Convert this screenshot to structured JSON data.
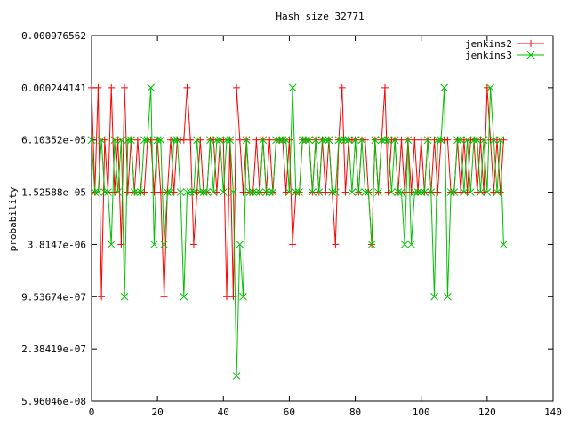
{
  "chart_data": {
    "type": "line",
    "title": "Hash size 32771",
    "xlabel": "",
    "ylabel": "probability",
    "x_scale": "linear",
    "y_scale": "log2",
    "xlim": [
      0,
      140
    ],
    "ylim": [
      5.96046e-08,
      0.000976562
    ],
    "x_ticks": [
      0,
      20,
      40,
      60,
      80,
      100,
      120,
      140
    ],
    "y_ticks": [
      {
        "value": 0.000976562,
        "label": "0.000976562"
      },
      {
        "value": 0.000244141,
        "label": "0.000244141"
      },
      {
        "value": 6.10352e-05,
        "label": "6.10352e-05"
      },
      {
        "value": 1.52588e-05,
        "label": "1.52588e-05"
      },
      {
        "value": 3.8147e-06,
        "label": "3.8147e-06"
      },
      {
        "value": 9.53674e-07,
        "label": "9.53674e-07"
      },
      {
        "value": 2.38419e-07,
        "label": "2.38419e-07"
      },
      {
        "value": 5.96046e-08,
        "label": "5.96046e-08"
      }
    ],
    "grid": false,
    "legend_position": "top-right",
    "x": [
      0,
      1,
      2,
      3,
      4,
      5,
      6,
      7,
      8,
      9,
      10,
      11,
      12,
      13,
      14,
      15,
      16,
      17,
      18,
      19,
      20,
      21,
      22,
      23,
      24,
      25,
      26,
      27,
      28,
      29,
      30,
      31,
      32,
      33,
      34,
      35,
      36,
      37,
      38,
      39,
      40,
      41,
      42,
      43,
      44,
      45,
      46,
      47,
      48,
      49,
      50,
      51,
      52,
      53,
      54,
      55,
      56,
      57,
      58,
      59,
      60,
      61,
      62,
      63,
      64,
      65,
      66,
      67,
      68,
      69,
      70,
      71,
      72,
      73,
      74,
      75,
      76,
      77,
      78,
      79,
      80,
      81,
      82,
      83,
      84,
      85,
      86,
      87,
      88,
      89,
      90,
      91,
      92,
      93,
      94,
      95,
      96,
      97,
      98,
      99,
      100,
      101,
      102,
      103,
      104,
      105,
      106,
      107,
      108,
      109,
      110,
      111,
      112,
      113,
      114,
      115,
      116,
      117,
      118,
      119,
      120,
      121,
      122,
      123,
      124,
      125
    ],
    "series": [
      {
        "name": "jenkins2",
        "color": "#ff0000",
        "marker": "plus",
        "values": [
          0.000244141,
          1.52588e-05,
          0.000244141,
          9.53674e-07,
          6.10352e-05,
          1.52588e-05,
          0.000244141,
          1.52588e-05,
          6.10352e-05,
          3.8147e-06,
          0.000244141,
          1.52588e-05,
          6.10352e-05,
          1.52588e-05,
          6.10352e-05,
          1.52588e-05,
          1.52588e-05,
          6.10352e-05,
          6.10352e-05,
          1.52588e-05,
          6.10352e-05,
          1.52588e-05,
          9.53674e-07,
          1.52588e-05,
          6.10352e-05,
          1.52588e-05,
          6.10352e-05,
          6.10352e-05,
          6.10352e-05,
          0.000244141,
          6.10352e-05,
          3.8147e-06,
          1.52588e-05,
          6.10352e-05,
          1.52588e-05,
          1.52588e-05,
          6.10352e-05,
          6.10352e-05,
          1.52588e-05,
          6.10352e-05,
          6.10352e-05,
          9.53674e-07,
          6.10352e-05,
          9.53674e-07,
          0.000244141,
          6.10352e-05,
          1.52588e-05,
          6.10352e-05,
          1.52588e-05,
          1.52588e-05,
          6.10352e-05,
          1.52588e-05,
          6.10352e-05,
          1.52588e-05,
          6.10352e-05,
          1.52588e-05,
          6.10352e-05,
          6.10352e-05,
          6.10352e-05,
          1.52588e-05,
          6.10352e-05,
          3.8147e-06,
          1.52588e-05,
          1.52588e-05,
          6.10352e-05,
          6.10352e-05,
          6.10352e-05,
          1.52588e-05,
          6.10352e-05,
          1.52588e-05,
          6.10352e-05,
          1.52588e-05,
          6.10352e-05,
          1.52588e-05,
          3.8147e-06,
          6.10352e-05,
          0.000244141,
          1.52588e-05,
          6.10352e-05,
          6.10352e-05,
          6.10352e-05,
          1.52588e-05,
          6.10352e-05,
          6.10352e-05,
          1.52588e-05,
          3.8147e-06,
          6.10352e-05,
          1.52588e-05,
          6.10352e-05,
          0.000244141,
          1.52588e-05,
          6.10352e-05,
          6.10352e-05,
          1.52588e-05,
          6.10352e-05,
          1.52588e-05,
          6.10352e-05,
          1.52588e-05,
          6.10352e-05,
          1.52588e-05,
          6.10352e-05,
          1.52588e-05,
          6.10352e-05,
          1.52588e-05,
          6.10352e-05,
          1.52588e-05,
          6.10352e-05,
          6.10352e-05,
          6.10352e-05,
          1.52588e-05,
          1.52588e-05,
          6.10352e-05,
          1.52588e-05,
          6.10352e-05,
          1.52588e-05,
          6.10352e-05,
          6.10352e-05,
          1.52588e-05,
          6.10352e-05,
          1.52588e-05,
          0.000244141,
          6.10352e-05,
          1.52588e-05,
          6.10352e-05,
          1.52588e-05,
          6.10352e-05
        ]
      },
      {
        "name": "jenkins3",
        "color": "#00c000",
        "marker": "cross",
        "values": [
          6.10352e-05,
          1.52588e-05,
          1.52588e-05,
          6.10352e-05,
          1.52588e-05,
          1.52588e-05,
          3.8147e-06,
          6.10352e-05,
          1.52588e-05,
          6.10352e-05,
          9.53674e-07,
          6.10352e-05,
          6.10352e-05,
          1.52588e-05,
          1.52588e-05,
          1.52588e-05,
          6.10352e-05,
          6.10352e-05,
          0.000244141,
          3.8147e-06,
          6.10352e-05,
          6.10352e-05,
          3.8147e-06,
          1.52588e-05,
          1.52588e-05,
          6.10352e-05,
          6.10352e-05,
          1.52588e-05,
          9.53674e-07,
          1.52588e-05,
          1.52588e-05,
          1.52588e-05,
          6.10352e-05,
          1.52588e-05,
          1.52588e-05,
          1.52588e-05,
          6.10352e-05,
          1.52588e-05,
          6.10352e-05,
          6.10352e-05,
          1.52588e-05,
          6.10352e-05,
          6.10352e-05,
          1.52588e-05,
          1.16415e-07,
          3.8147e-06,
          9.53674e-07,
          6.10352e-05,
          1.52588e-05,
          1.52588e-05,
          1.52588e-05,
          1.52588e-05,
          6.10352e-05,
          1.52588e-05,
          1.52588e-05,
          1.52588e-05,
          6.10352e-05,
          6.10352e-05,
          6.10352e-05,
          6.10352e-05,
          1.52588e-05,
          0.000244141,
          1.52588e-05,
          1.52588e-05,
          6.10352e-05,
          6.10352e-05,
          6.10352e-05,
          1.52588e-05,
          6.10352e-05,
          1.52588e-05,
          6.10352e-05,
          6.10352e-05,
          6.10352e-05,
          1.52588e-05,
          1.52588e-05,
          6.10352e-05,
          6.10352e-05,
          6.10352e-05,
          6.10352e-05,
          1.52588e-05,
          6.10352e-05,
          1.52588e-05,
          6.10352e-05,
          1.52588e-05,
          1.52588e-05,
          3.8147e-06,
          6.10352e-05,
          1.52588e-05,
          6.10352e-05,
          6.10352e-05,
          6.10352e-05,
          1.52588e-05,
          6.10352e-05,
          1.52588e-05,
          1.52588e-05,
          3.8147e-06,
          6.10352e-05,
          3.8147e-06,
          1.52588e-05,
          1.52588e-05,
          1.52588e-05,
          1.52588e-05,
          6.10352e-05,
          1.52588e-05,
          9.53674e-07,
          6.10352e-05,
          6.10352e-05,
          0.000244141,
          9.53674e-07,
          1.52588e-05,
          1.52588e-05,
          6.10352e-05,
          6.10352e-05,
          1.52588e-05,
          6.10352e-05,
          1.52588e-05,
          6.10352e-05,
          6.10352e-05,
          1.52588e-05,
          6.10352e-05,
          1.52588e-05,
          0.000244141,
          6.10352e-05,
          1.52588e-05,
          6.10352e-05,
          3.8147e-06
        ]
      }
    ]
  }
}
